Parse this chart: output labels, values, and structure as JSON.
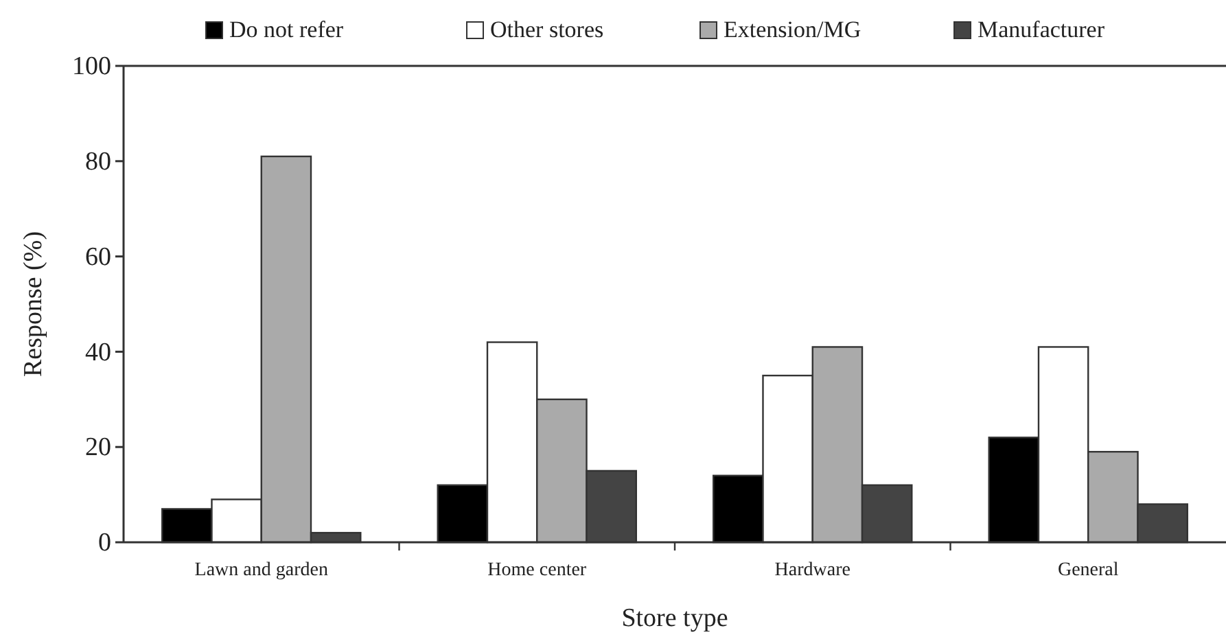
{
  "chart_data": {
    "type": "bar",
    "xlabel": "Store type",
    "ylabel": "Response (%)",
    "categories": [
      "Lawn and garden",
      "Home center",
      "Hardware",
      "General"
    ],
    "series": [
      {
        "name": "Do not refer",
        "color": "#000000",
        "values": [
          7,
          12,
          14,
          22
        ]
      },
      {
        "name": "Other stores",
        "color": "#ffffff",
        "values": [
          9,
          42,
          35,
          41
        ]
      },
      {
        "name": "Extension/MG",
        "color": "#aaaaaa",
        "values": [
          81,
          30,
          41,
          19
        ]
      },
      {
        "name": "Manufacturer",
        "color": "#444444",
        "values": [
          2,
          15,
          12,
          8
        ]
      }
    ],
    "ylim": [
      0,
      100
    ],
    "yticks": [
      0,
      20,
      40,
      60,
      80,
      100
    ],
    "grid": false,
    "legend": "top"
  }
}
